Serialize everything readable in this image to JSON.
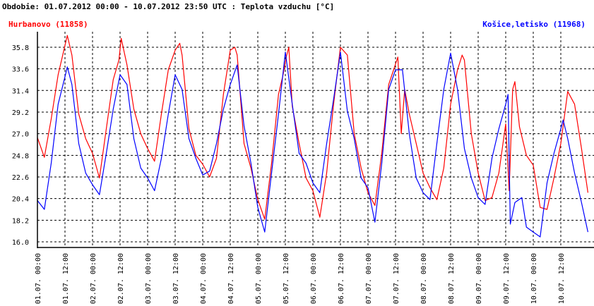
{
  "chart_data": {
    "type": "line",
    "title": "Obdobie: 01.07.2012 00:00 - 10.07.2012 23:50 UTC : Teplota vzduchu [°C]",
    "xlabel": "",
    "ylabel": "",
    "x_unit": "hours since 01.07.2012 00:00 UTC",
    "xlim": [
      0,
      239.83
    ],
    "ylim": [
      15.4,
      37.4
    ],
    "yticks": [
      "16.0",
      "18.2",
      "20.4",
      "22.6",
      "24.8",
      "27.0",
      "29.2",
      "31.4",
      "33.6",
      "35.8"
    ],
    "xticks": [
      "01.07. 00:00",
      "01.07. 12:00",
      "02.07. 00:00",
      "02.07. 12:00",
      "03.07. 00:00",
      "03.07. 12:00",
      "04.07. 00:00",
      "04.07. 12:00",
      "05.07. 00:00",
      "05.07. 12:00",
      "06.07. 00:00",
      "06.07. 12:00",
      "07.07. 00:00",
      "07.07. 12:00",
      "08.07. 00:00",
      "08.07. 12:00",
      "09.07. 00:00",
      "09.07. 12:00",
      "10.07. 00:00",
      "10.07. 12:00"
    ],
    "grid": true,
    "series": [
      {
        "name": "Hurbanovo (11858)",
        "color": "#ff0000",
        "legend": "top-left",
        "points": [
          [
            0,
            26.6
          ],
          [
            3,
            24.6
          ],
          [
            6,
            28.5
          ],
          [
            9,
            33
          ],
          [
            11.5,
            35.5
          ],
          [
            13,
            37
          ],
          [
            15,
            35
          ],
          [
            18,
            29
          ],
          [
            21,
            26.5
          ],
          [
            24,
            25
          ],
          [
            27,
            22.5
          ],
          [
            30,
            27.5
          ],
          [
            33,
            32.5
          ],
          [
            35.5,
            34.5
          ],
          [
            36.5,
            36.7
          ],
          [
            39,
            34
          ],
          [
            42,
            29.5
          ],
          [
            45,
            27
          ],
          [
            48,
            25.5
          ],
          [
            51,
            24.2
          ],
          [
            54,
            29
          ],
          [
            57,
            33.5
          ],
          [
            60,
            35.5
          ],
          [
            62,
            36.2
          ],
          [
            63,
            35
          ],
          [
            66,
            27.5
          ],
          [
            69,
            24.8
          ],
          [
            72,
            23.9
          ],
          [
            75,
            22.6
          ],
          [
            78,
            24.5
          ],
          [
            81,
            31
          ],
          [
            84,
            35.5
          ],
          [
            86,
            35.8
          ],
          [
            87,
            35
          ],
          [
            90,
            26
          ],
          [
            93,
            23.5
          ],
          [
            96,
            20.3
          ],
          [
            99,
            18.3
          ],
          [
            102,
            24
          ],
          [
            105,
            31
          ],
          [
            107,
            33
          ],
          [
            108.5,
            34.9
          ],
          [
            109.5,
            35.8
          ],
          [
            111,
            29.8
          ],
          [
            114,
            26
          ],
          [
            117,
            22.5
          ],
          [
            120,
            21.2
          ],
          [
            123,
            18.5
          ],
          [
            126,
            23
          ],
          [
            129,
            30
          ],
          [
            132,
            35.8
          ],
          [
            135,
            35
          ],
          [
            138,
            27
          ],
          [
            141,
            23.5
          ],
          [
            144,
            21
          ],
          [
            147,
            19.7
          ],
          [
            150,
            25
          ],
          [
            153,
            32
          ],
          [
            157,
            34.8
          ],
          [
            158.5,
            27
          ],
          [
            160,
            31.5
          ],
          [
            162,
            29
          ],
          [
            165,
            26
          ],
          [
            168,
            23
          ],
          [
            171,
            21.5
          ],
          [
            174,
            20.3
          ],
          [
            177,
            23.5
          ],
          [
            180,
            30
          ],
          [
            183,
            33.5
          ],
          [
            185,
            35
          ],
          [
            186,
            34.5
          ],
          [
            189,
            27
          ],
          [
            192,
            23
          ],
          [
            195,
            20.2
          ],
          [
            198,
            20.5
          ],
          [
            201,
            23
          ],
          [
            204,
            28
          ],
          [
            205.5,
            21.2
          ],
          [
            207,
            31.5
          ],
          [
            208,
            32.3
          ],
          [
            210,
            27.7
          ],
          [
            213,
            24.8
          ],
          [
            216,
            23.8
          ],
          [
            219,
            19.5
          ],
          [
            222,
            19.3
          ],
          [
            225,
            22.5
          ],
          [
            228,
            26
          ],
          [
            231,
            31.3
          ],
          [
            234,
            30
          ],
          [
            237,
            25.5
          ],
          [
            239.83,
            21
          ]
        ]
      },
      {
        "name": "Košice,letisko (11968)",
        "color": "#0000ff",
        "legend": "top-right",
        "points": [
          [
            0,
            20.2
          ],
          [
            3,
            19.3
          ],
          [
            6,
            24
          ],
          [
            9,
            30
          ],
          [
            12,
            32.8
          ],
          [
            13,
            33.8
          ],
          [
            15,
            32
          ],
          [
            18,
            26
          ],
          [
            21,
            23
          ],
          [
            24,
            21.8
          ],
          [
            27,
            20.8
          ],
          [
            30,
            25
          ],
          [
            33,
            29.5
          ],
          [
            36,
            33
          ],
          [
            39,
            32
          ],
          [
            42,
            26.5
          ],
          [
            45,
            23.5
          ],
          [
            48,
            22.5
          ],
          [
            51,
            21.2
          ],
          [
            54,
            24.5
          ],
          [
            57,
            29
          ],
          [
            60,
            33
          ],
          [
            63,
            31.5
          ],
          [
            66,
            26.5
          ],
          [
            69,
            24.5
          ],
          [
            72,
            22.8
          ],
          [
            75,
            23.2
          ],
          [
            78,
            26
          ],
          [
            81,
            29.5
          ],
          [
            84,
            32
          ],
          [
            87,
            34
          ],
          [
            90,
            27.8
          ],
          [
            93,
            24
          ],
          [
            96,
            19.5
          ],
          [
            99,
            17
          ],
          [
            102,
            23
          ],
          [
            105,
            29
          ],
          [
            108,
            35.3
          ],
          [
            111,
            30
          ],
          [
            114,
            25
          ],
          [
            117,
            24
          ],
          [
            120,
            22
          ],
          [
            123,
            21
          ],
          [
            126,
            26
          ],
          [
            129,
            30.5
          ],
          [
            132,
            35.3
          ],
          [
            135,
            29.3
          ],
          [
            138,
            26.5
          ],
          [
            141,
            22.5
          ],
          [
            144,
            21.5
          ],
          [
            147,
            18
          ],
          [
            150,
            24
          ],
          [
            153,
            31.5
          ],
          [
            156,
            33.5
          ],
          [
            159,
            33.5
          ],
          [
            162,
            27
          ],
          [
            165,
            22.5
          ],
          [
            168,
            21
          ],
          [
            171,
            20.3
          ],
          [
            174,
            26
          ],
          [
            177,
            31.5
          ],
          [
            180,
            35.2
          ],
          [
            183,
            31.5
          ],
          [
            186,
            25.5
          ],
          [
            189,
            22.5
          ],
          [
            192,
            20.5
          ],
          [
            195,
            19.8
          ],
          [
            198,
            24.5
          ],
          [
            201,
            27.5
          ],
          [
            204,
            30
          ],
          [
            205,
            31
          ],
          [
            206,
            17.8
          ],
          [
            208,
            20
          ],
          [
            211,
            20.5
          ],
          [
            213,
            17.5
          ],
          [
            216,
            17
          ],
          [
            219,
            16.5
          ],
          [
            222,
            22
          ],
          [
            225,
            25
          ],
          [
            228,
            27.5
          ],
          [
            229,
            28.4
          ],
          [
            231,
            26.5
          ],
          [
            234,
            23
          ],
          [
            237,
            20
          ],
          [
            239.83,
            17
          ]
        ]
      }
    ]
  }
}
